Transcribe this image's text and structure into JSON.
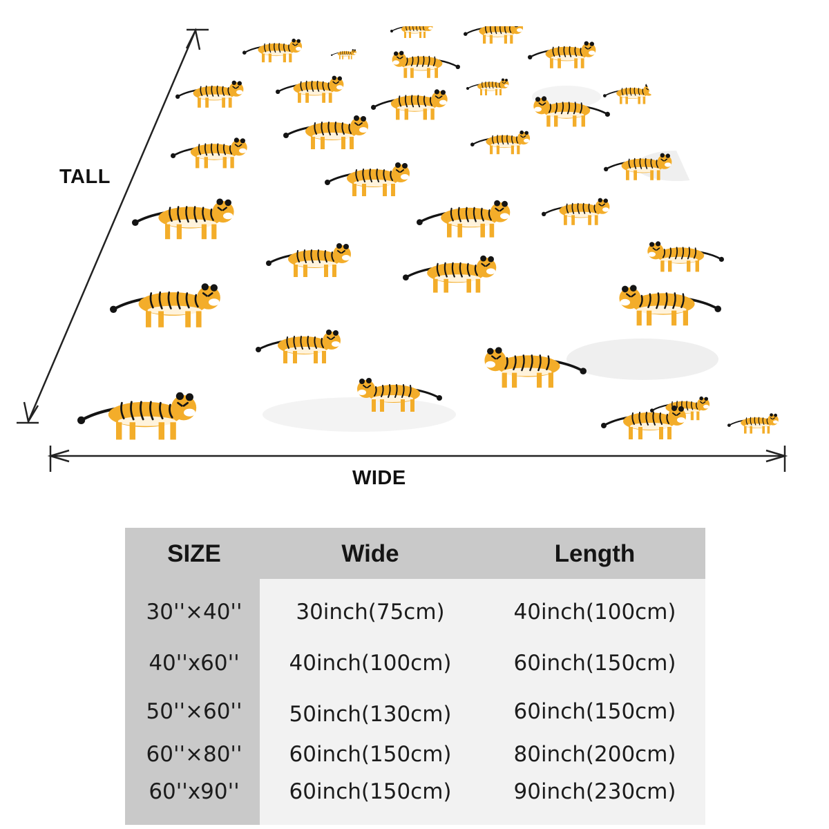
{
  "dimensions": {
    "tall_label": "TALL",
    "wide_label": "WIDE"
  },
  "pattern": {
    "subject": "tiger-icon",
    "colors": {
      "body": "#f3ad2a",
      "stripe": "#141414",
      "background": "#ffffff",
      "shadow": "#e4e4e4"
    }
  },
  "table": {
    "headers": {
      "size": "SIZE",
      "wide": "Wide",
      "length": "Length"
    },
    "rows": [
      {
        "size": "30''×40''",
        "wide": "30inch(75cm)",
        "length": "40inch(100cm)"
      },
      {
        "size": "40''x60''",
        "wide": "40inch(100cm)",
        "length": "60inch(150cm)"
      },
      {
        "size": "50''×60''",
        "wide": "50inch(130cm)",
        "length": "60inch(150cm)"
      },
      {
        "size": "60''×80''",
        "wide": "60inch(150cm)",
        "length": "80inch(200cm)"
      },
      {
        "size": "60''x90''",
        "wide": "60inch(150cm)",
        "length": "90inch(230cm)"
      }
    ],
    "colors": {
      "header_bg": "#c9c9c9",
      "body_bg": "#f2f2f2",
      "text": "#1c1c1c"
    }
  }
}
